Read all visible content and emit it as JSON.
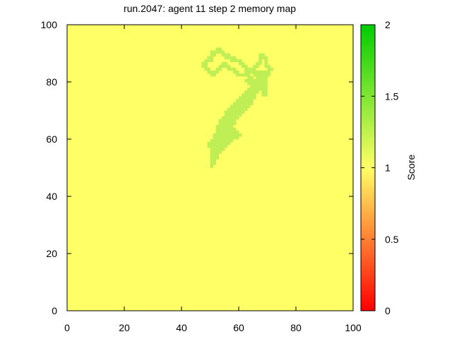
{
  "chart_data": {
    "type": "heatmap",
    "title": "run.2047: agent 11 step 2 memory map",
    "xlabel": "",
    "ylabel": "",
    "xlim": [
      0,
      100
    ],
    "ylim": [
      0,
      100
    ],
    "x_ticks": [
      "0",
      "20",
      "40",
      "60",
      "80",
      "100"
    ],
    "y_ticks": [
      "0",
      "20",
      "40",
      "60",
      "80",
      "100"
    ],
    "grid": false,
    "background_value": 1.0,
    "colorbar": {
      "label": "Score",
      "range": [
        0,
        2
      ],
      "ticks": [
        "0",
        "0.5",
        "1",
        "1.5",
        "2"
      ],
      "colors": [
        "#ff0000",
        "#ffff66",
        "#00cc00"
      ]
    },
    "colors": {
      "background_cell": "#ffff66",
      "highlight_cell": "#bfee55"
    },
    "highlight_value": 1.3,
    "highlight_cells_xy": [
      [
        52,
        91
      ],
      [
        53,
        91
      ],
      [
        50,
        90
      ],
      [
        51,
        90
      ],
      [
        52,
        90
      ],
      [
        53,
        90
      ],
      [
        54,
        90
      ],
      [
        50,
        89
      ],
      [
        51,
        89
      ],
      [
        54,
        89
      ],
      [
        55,
        89
      ],
      [
        56,
        89
      ],
      [
        67,
        89
      ],
      [
        68,
        89
      ],
      [
        49,
        88
      ],
      [
        50,
        88
      ],
      [
        55,
        88
      ],
      [
        56,
        88
      ],
      [
        57,
        88
      ],
      [
        58,
        88
      ],
      [
        67,
        88
      ],
      [
        68,
        88
      ],
      [
        69,
        88
      ],
      [
        48,
        87
      ],
      [
        49,
        87
      ],
      [
        50,
        87
      ],
      [
        57,
        87
      ],
      [
        58,
        87
      ],
      [
        59,
        87
      ],
      [
        60,
        87
      ],
      [
        67,
        87
      ],
      [
        69,
        87
      ],
      [
        47,
        86
      ],
      [
        48,
        86
      ],
      [
        54,
        86
      ],
      [
        55,
        86
      ],
      [
        60,
        86
      ],
      [
        61,
        86
      ],
      [
        66,
        86
      ],
      [
        67,
        86
      ],
      [
        69,
        86
      ],
      [
        47,
        85
      ],
      [
        48,
        85
      ],
      [
        53,
        85
      ],
      [
        54,
        85
      ],
      [
        55,
        85
      ],
      [
        56,
        85
      ],
      [
        61,
        85
      ],
      [
        62,
        85
      ],
      [
        65,
        85
      ],
      [
        66,
        85
      ],
      [
        69,
        85
      ],
      [
        70,
        85
      ],
      [
        48,
        84
      ],
      [
        49,
        84
      ],
      [
        52,
        84
      ],
      [
        53,
        84
      ],
      [
        56,
        84
      ],
      [
        57,
        84
      ],
      [
        58,
        84
      ],
      [
        62,
        84
      ],
      [
        63,
        84
      ],
      [
        64,
        84
      ],
      [
        65,
        84
      ],
      [
        70,
        84
      ],
      [
        71,
        84
      ],
      [
        49,
        83
      ],
      [
        50,
        83
      ],
      [
        51,
        83
      ],
      [
        52,
        83
      ],
      [
        58,
        83
      ],
      [
        59,
        83
      ],
      [
        62,
        83
      ],
      [
        63,
        83
      ],
      [
        64,
        83
      ],
      [
        65,
        83
      ],
      [
        66,
        83
      ],
      [
        67,
        83
      ],
      [
        68,
        83
      ],
      [
        69,
        83
      ],
      [
        70,
        83
      ],
      [
        50,
        82
      ],
      [
        51,
        82
      ],
      [
        59,
        82
      ],
      [
        60,
        82
      ],
      [
        61,
        82
      ],
      [
        62,
        82
      ],
      [
        63,
        82
      ],
      [
        65,
        82
      ],
      [
        66,
        82
      ],
      [
        67,
        82
      ],
      [
        68,
        82
      ],
      [
        69,
        82
      ],
      [
        70,
        82
      ],
      [
        63,
        81
      ],
      [
        64,
        81
      ],
      [
        66,
        81
      ],
      [
        67,
        81
      ],
      [
        68,
        81
      ],
      [
        69,
        81
      ],
      [
        62,
        80
      ],
      [
        63,
        80
      ],
      [
        64,
        80
      ],
      [
        65,
        80
      ],
      [
        66,
        80
      ],
      [
        67,
        80
      ],
      [
        68,
        80
      ],
      [
        69,
        80
      ],
      [
        63,
        79
      ],
      [
        64,
        79
      ],
      [
        65,
        79
      ],
      [
        66,
        79
      ],
      [
        67,
        79
      ],
      [
        68,
        79
      ],
      [
        69,
        79
      ],
      [
        64,
        78
      ],
      [
        65,
        78
      ],
      [
        66,
        78
      ],
      [
        67,
        78
      ],
      [
        68,
        78
      ],
      [
        69,
        78
      ],
      [
        63,
        77
      ],
      [
        64,
        77
      ],
      [
        65,
        77
      ],
      [
        66,
        77
      ],
      [
        67,
        77
      ],
      [
        68,
        77
      ],
      [
        69,
        77
      ],
      [
        62,
        76
      ],
      [
        63,
        76
      ],
      [
        64,
        76
      ],
      [
        65,
        76
      ],
      [
        66,
        76
      ],
      [
        68,
        76
      ],
      [
        69,
        76
      ],
      [
        61,
        75
      ],
      [
        62,
        75
      ],
      [
        63,
        75
      ],
      [
        64,
        75
      ],
      [
        65,
        75
      ],
      [
        68,
        75
      ],
      [
        69,
        75
      ],
      [
        60,
        74
      ],
      [
        61,
        74
      ],
      [
        62,
        74
      ],
      [
        63,
        74
      ],
      [
        64,
        74
      ],
      [
        65,
        74
      ],
      [
        59,
        73
      ],
      [
        60,
        73
      ],
      [
        61,
        73
      ],
      [
        62,
        73
      ],
      [
        63,
        73
      ],
      [
        64,
        73
      ],
      [
        58,
        72
      ],
      [
        59,
        72
      ],
      [
        60,
        72
      ],
      [
        61,
        72
      ],
      [
        62,
        72
      ],
      [
        63,
        72
      ],
      [
        64,
        72
      ],
      [
        57,
        71
      ],
      [
        58,
        71
      ],
      [
        59,
        71
      ],
      [
        60,
        71
      ],
      [
        61,
        71
      ],
      [
        62,
        71
      ],
      [
        63,
        71
      ],
      [
        56,
        70
      ],
      [
        57,
        70
      ],
      [
        58,
        70
      ],
      [
        59,
        70
      ],
      [
        60,
        70
      ],
      [
        61,
        70
      ],
      [
        62,
        70
      ],
      [
        55,
        69
      ],
      [
        56,
        69
      ],
      [
        57,
        69
      ],
      [
        58,
        69
      ],
      [
        59,
        69
      ],
      [
        60,
        69
      ],
      [
        61,
        69
      ],
      [
        55,
        68
      ],
      [
        56,
        68
      ],
      [
        57,
        68
      ],
      [
        58,
        68
      ],
      [
        59,
        68
      ],
      [
        60,
        68
      ],
      [
        54,
        67
      ],
      [
        55,
        67
      ],
      [
        56,
        67
      ],
      [
        57,
        67
      ],
      [
        58,
        67
      ],
      [
        59,
        67
      ],
      [
        53,
        66
      ],
      [
        54,
        66
      ],
      [
        55,
        66
      ],
      [
        56,
        66
      ],
      [
        57,
        66
      ],
      [
        58,
        66
      ],
      [
        53,
        65
      ],
      [
        54,
        65
      ],
      [
        55,
        65
      ],
      [
        56,
        65
      ],
      [
        57,
        65
      ],
      [
        58,
        65
      ],
      [
        52,
        64
      ],
      [
        53,
        64
      ],
      [
        54,
        64
      ],
      [
        55,
        64
      ],
      [
        56,
        64
      ],
      [
        57,
        64
      ],
      [
        52,
        63
      ],
      [
        53,
        63
      ],
      [
        54,
        63
      ],
      [
        55,
        63
      ],
      [
        56,
        63
      ],
      [
        57,
        63
      ],
      [
        58,
        63
      ],
      [
        52,
        62
      ],
      [
        53,
        62
      ],
      [
        54,
        62
      ],
      [
        55,
        62
      ],
      [
        56,
        62
      ],
      [
        57,
        62
      ],
      [
        58,
        62
      ],
      [
        59,
        62
      ],
      [
        51,
        61
      ],
      [
        52,
        61
      ],
      [
        53,
        61
      ],
      [
        54,
        61
      ],
      [
        55,
        61
      ],
      [
        56,
        61
      ],
      [
        57,
        61
      ],
      [
        58,
        61
      ],
      [
        59,
        61
      ],
      [
        60,
        61
      ],
      [
        51,
        60
      ],
      [
        52,
        60
      ],
      [
        53,
        60
      ],
      [
        54,
        60
      ],
      [
        55,
        60
      ],
      [
        56,
        60
      ],
      [
        57,
        60
      ],
      [
        58,
        60
      ],
      [
        59,
        60
      ],
      [
        50,
        59
      ],
      [
        51,
        59
      ],
      [
        52,
        59
      ],
      [
        53,
        59
      ],
      [
        54,
        59
      ],
      [
        55,
        59
      ],
      [
        56,
        59
      ],
      [
        57,
        59
      ],
      [
        49,
        58
      ],
      [
        50,
        58
      ],
      [
        51,
        58
      ],
      [
        52,
        58
      ],
      [
        53,
        58
      ],
      [
        54,
        58
      ],
      [
        55,
        58
      ],
      [
        56,
        58
      ],
      [
        49,
        57
      ],
      [
        50,
        57
      ],
      [
        51,
        57
      ],
      [
        52,
        57
      ],
      [
        53,
        57
      ],
      [
        54,
        57
      ],
      [
        55,
        57
      ],
      [
        50,
        56
      ],
      [
        51,
        56
      ],
      [
        52,
        56
      ],
      [
        53,
        56
      ],
      [
        54,
        56
      ],
      [
        50,
        55
      ],
      [
        51,
        55
      ],
      [
        52,
        55
      ],
      [
        53,
        55
      ],
      [
        50,
        54
      ],
      [
        51,
        54
      ],
      [
        52,
        54
      ],
      [
        50,
        53
      ],
      [
        51,
        53
      ],
      [
        52,
        53
      ],
      [
        50,
        52
      ],
      [
        51,
        52
      ],
      [
        50,
        51
      ],
      [
        51,
        51
      ],
      [
        50,
        50
      ]
    ]
  }
}
